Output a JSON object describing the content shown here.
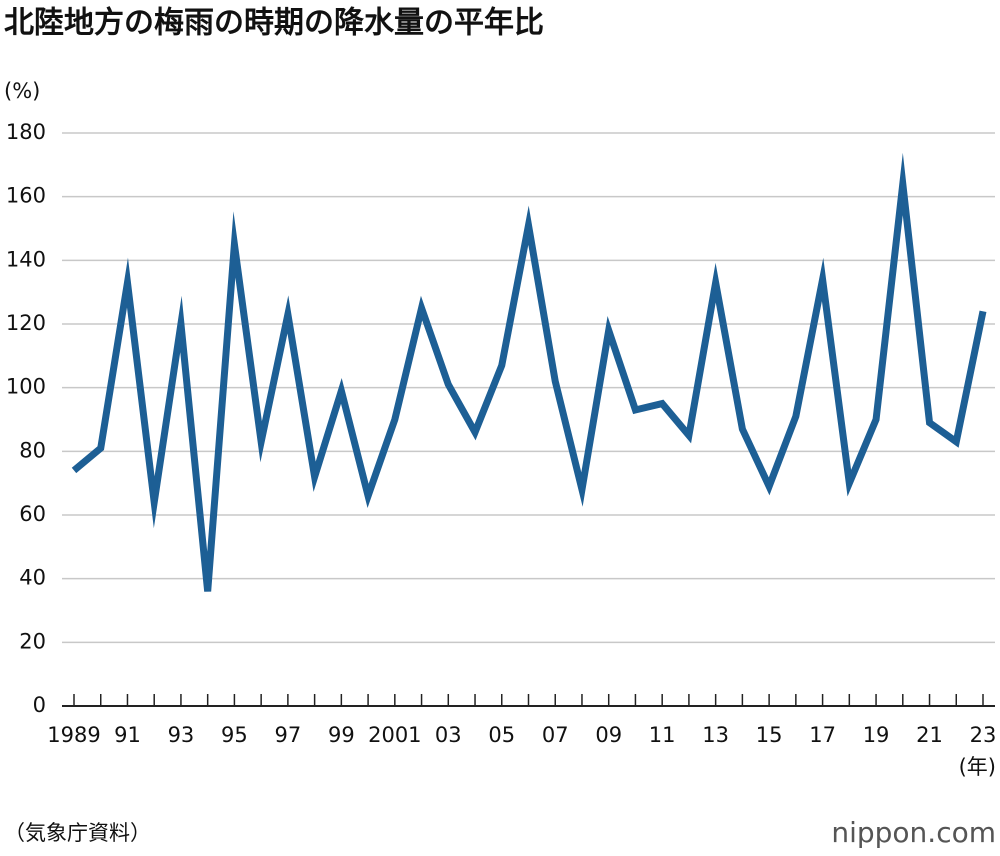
{
  "chart_data": {
    "type": "line",
    "title": "北陸地方の梅雨の時期の降水量の平年比",
    "y_label": "(%)",
    "x_label": "(年)",
    "source": "（気象庁資料）",
    "logo": "nippon.com",
    "categories": [
      "1989",
      null,
      "91",
      null,
      "93",
      null,
      "95",
      null,
      "97",
      null,
      "99",
      null,
      "2001",
      null,
      "03",
      null,
      "05",
      null,
      "07",
      null,
      "09",
      null,
      "11",
      null,
      "13",
      null,
      "15",
      null,
      "17",
      null,
      "19",
      null,
      "21",
      null,
      "23"
    ],
    "series": [
      {
        "name": "降水量の平年比",
        "color": "#1d5f95",
        "values": [
          74,
          81,
          133,
          64,
          120,
          36,
          145,
          83,
          123,
          72,
          99,
          66,
          90,
          125,
          101,
          86,
          107,
          151,
          102,
          68,
          118,
          93,
          95,
          85,
          133,
          87,
          69,
          91,
          134,
          70,
          90,
          164,
          89,
          83,
          124
        ]
      }
    ],
    "ylim": [
      0,
      180
    ],
    "yticks": [
      0,
      20,
      40,
      60,
      80,
      100,
      120,
      140,
      160,
      180
    ],
    "grid": true
  }
}
